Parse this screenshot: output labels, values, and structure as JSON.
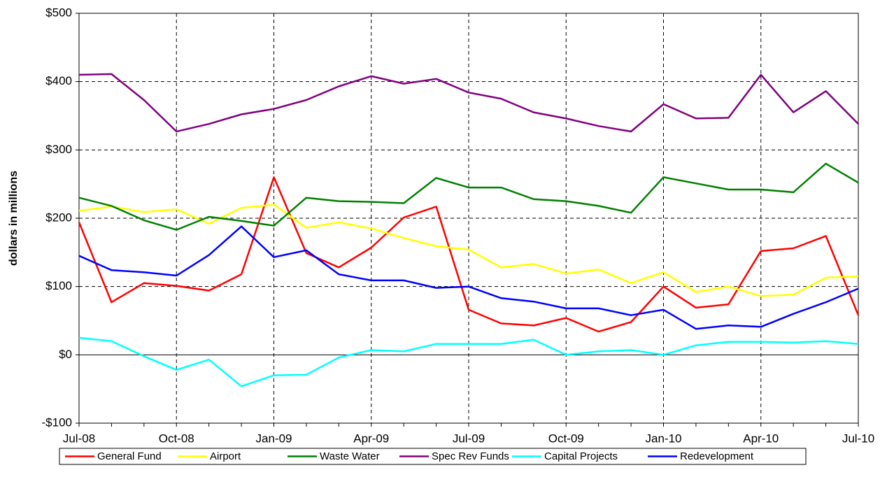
{
  "chart_data": {
    "type": "line",
    "y_label": "dollars in millions",
    "categories": [
      "Jul-08",
      null,
      null,
      "Oct-08",
      null,
      null,
      "Jan-09",
      null,
      null,
      "Apr-09",
      null,
      null,
      "Jul-09",
      null,
      null,
      "Oct-09",
      null,
      null,
      "Jan-10",
      null,
      null,
      "Apr-10",
      null,
      null,
      "Jul-10"
    ],
    "ylim": [
      -100,
      500
    ],
    "yticks": [
      {
        "value": -100,
        "label": "-$100"
      },
      {
        "value": 0,
        "label": "$0"
      },
      {
        "value": 100,
        "label": "$100"
      },
      {
        "value": 200,
        "label": "$200"
      },
      {
        "value": 300,
        "label": "$300"
      },
      {
        "value": 400,
        "label": "$400"
      },
      {
        "value": 500,
        "label": "$500"
      }
    ],
    "grid": true,
    "legend": "bottom",
    "series": [
      {
        "name": "General Fund",
        "color": "#ff0000",
        "values": [
          194,
          77,
          105,
          101,
          94,
          118,
          260,
          149,
          128,
          157,
          201,
          217,
          66,
          46,
          43,
          54,
          34,
          48,
          100,
          69,
          74,
          152,
          156,
          174,
          58
        ]
      },
      {
        "name": "Airport",
        "color": "#ffff00",
        "values": [
          211,
          217,
          209,
          213,
          192,
          215,
          220,
          186,
          194,
          185,
          171,
          159,
          154,
          128,
          133,
          119,
          125,
          105,
          121,
          92,
          100,
          86,
          88,
          113,
          115
        ]
      },
      {
        "name": "Waste Water",
        "color": "#008000",
        "values": [
          230,
          218,
          197,
          183,
          202,
          196,
          189,
          230,
          225,
          224,
          222,
          259,
          245,
          245,
          228,
          225,
          218,
          208,
          260,
          251,
          242,
          242,
          238,
          280,
          252
        ]
      },
      {
        "name": "Spec Rev Funds",
        "color": "#800080",
        "values": [
          410,
          411,
          373,
          327,
          338,
          352,
          360,
          373,
          393,
          408,
          397,
          404,
          384,
          375,
          355,
          346,
          335,
          327,
          367,
          346,
          347,
          410,
          355,
          386,
          338
        ]
      },
      {
        "name": "Capital Projects",
        "color": "#00ffff",
        "values": [
          25,
          20,
          -2,
          -22,
          -7,
          -46,
          -30,
          -29,
          -4,
          7,
          5,
          16,
          16,
          16,
          22,
          0,
          5,
          7,
          0,
          14,
          19,
          19,
          18,
          20,
          16
        ]
      },
      {
        "name": "Redevelopment",
        "color": "#0000ff",
        "values": [
          145,
          124,
          121,
          116,
          146,
          188,
          143,
          153,
          118,
          109,
          109,
          98,
          100,
          83,
          78,
          68,
          68,
          58,
          66,
          38,
          43,
          41,
          60,
          77,
          97
        ]
      }
    ]
  }
}
